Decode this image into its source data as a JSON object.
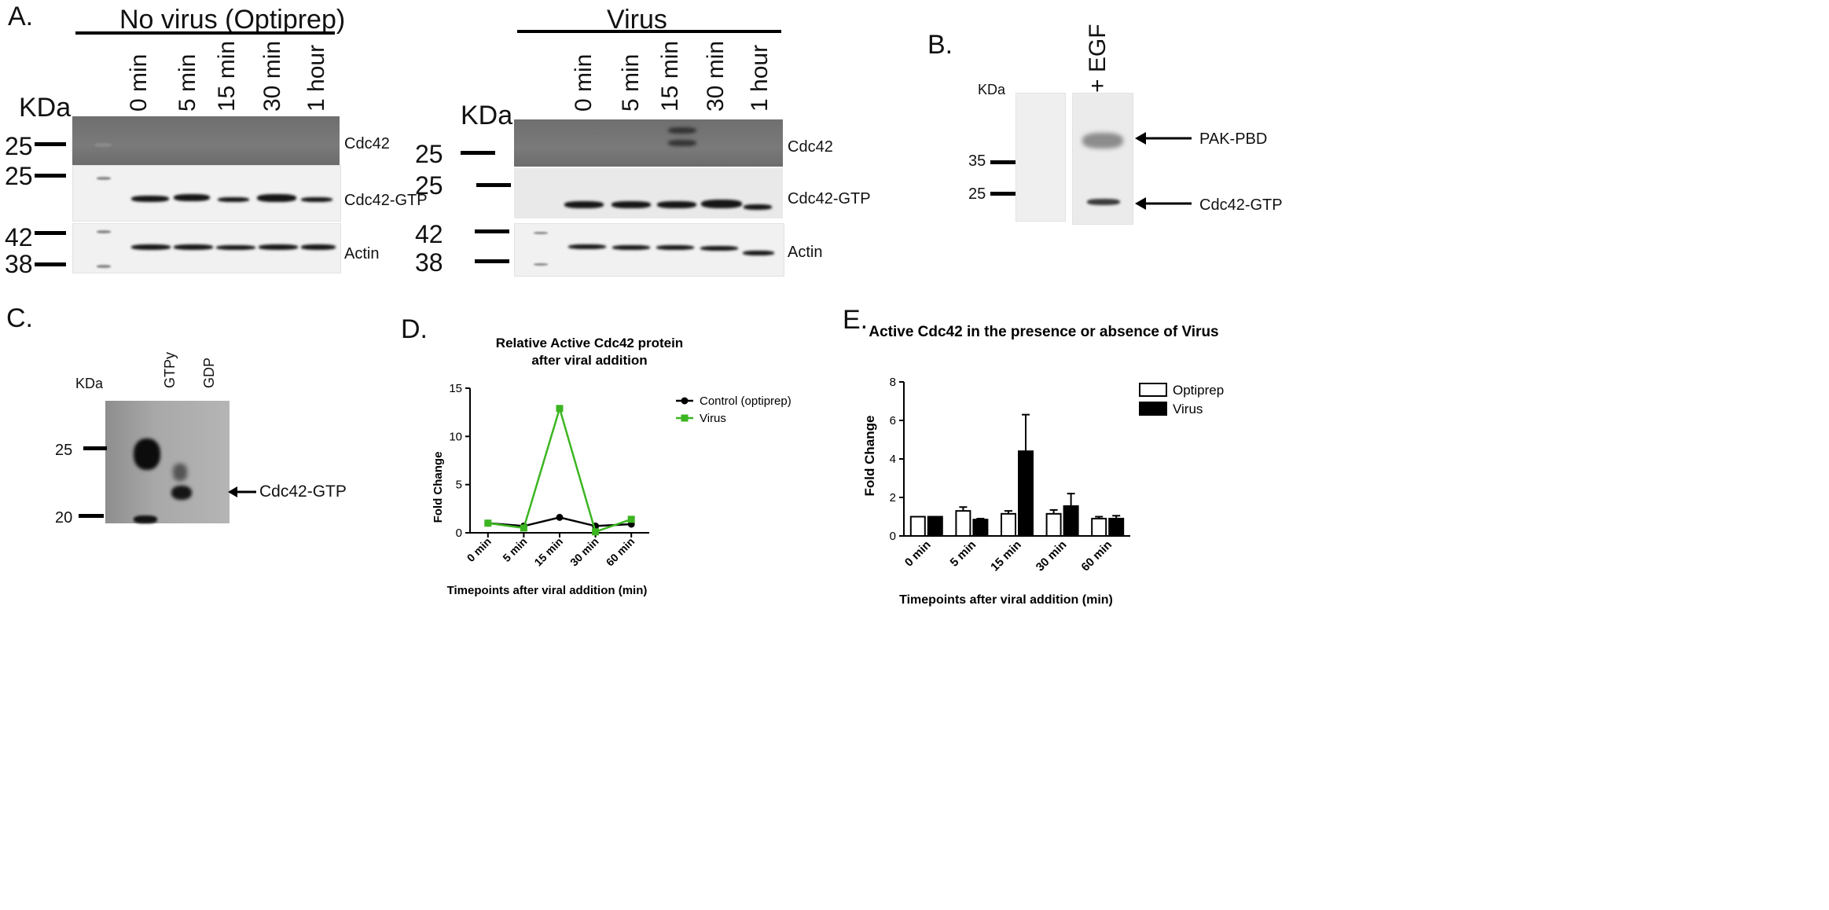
{
  "panelA": {
    "label": "A.",
    "left": {
      "header": "No virus (Optiprep)",
      "kda": "KDa",
      "lanes": [
        "0 min",
        "5 min",
        "15 min",
        "30 min",
        "1 hour"
      ],
      "markers": [
        "25",
        "25",
        "42",
        "38"
      ],
      "bands": [
        "Cdc42",
        "Cdc42-GTP",
        "Actin"
      ]
    },
    "right": {
      "header": "Virus",
      "kda": "KDa",
      "lanes": [
        "0 min",
        "5 min",
        "15 min",
        "30 min",
        "1 hour"
      ],
      "markers": [
        "25",
        "25",
        "42",
        "38"
      ],
      "bands": [
        "Cdc42",
        "Cdc42-GTP",
        "Actin"
      ]
    }
  },
  "panelB": {
    "label": "B.",
    "kda": "KDa",
    "lane": "+ EGF",
    "markers": [
      "35",
      "25"
    ],
    "arrows": [
      "PAK-PBD",
      "Cdc42-GTP"
    ]
  },
  "panelC": {
    "label": "C.",
    "kda": "KDa",
    "lanes": [
      "GTPy",
      "GDP"
    ],
    "markers": [
      "25",
      "20"
    ],
    "arrow": "Cdc42-GTP"
  },
  "panelD": {
    "label": "D.",
    "chart_data": {
      "type": "line",
      "title": "Relative Active Cdc42 protein after viral addition",
      "title_lines": [
        "Relative Active Cdc42 protein",
        "after viral addition"
      ],
      "xlabel": "Timepoints after viral addition (min)",
      "ylabel": "Fold Change",
      "categories": [
        "0 min",
        "5 min",
        "15 min",
        "30 min",
        "60 min"
      ],
      "ylim": [
        0,
        15
      ],
      "yticks": [
        "0",
        "5",
        "10",
        "15"
      ],
      "legend_position": "right",
      "series": [
        {
          "name": "Control (optiprep)",
          "values": [
            1.0,
            0.7,
            1.6,
            0.7,
            0.9
          ],
          "color": "#000000",
          "marker": "circle"
        },
        {
          "name": "Virus",
          "values": [
            1.0,
            0.5,
            12.9,
            0.1,
            1.4
          ],
          "color": "#3cb521",
          "marker": "square"
        }
      ]
    }
  },
  "panelE": {
    "label": "E.",
    "chart_data": {
      "type": "bar",
      "title": "Active Cdc42 in the presence or absence of Virus",
      "xlabel": "Timepoints after viral addition (min)",
      "ylabel": "Fold  Change",
      "categories": [
        "0 min",
        "5 min",
        "15 min",
        "30 min",
        "60 min"
      ],
      "ylim": [
        0,
        8
      ],
      "yticks": [
        "0",
        "2",
        "4",
        "6",
        "8"
      ],
      "legend_position": "top-right",
      "series": [
        {
          "name": "Optiprep",
          "values": [
            1.0,
            1.3,
            1.15,
            1.15,
            0.9
          ],
          "errors": [
            0.0,
            0.2,
            0.15,
            0.2,
            0.1
          ],
          "fill": "#ffffff"
        },
        {
          "name": "Virus",
          "values": [
            1.0,
            0.85,
            4.4,
            1.55,
            0.9
          ],
          "errors": [
            0.0,
            0.05,
            1.9,
            0.65,
            0.15
          ],
          "fill": "#000000"
        }
      ]
    }
  }
}
